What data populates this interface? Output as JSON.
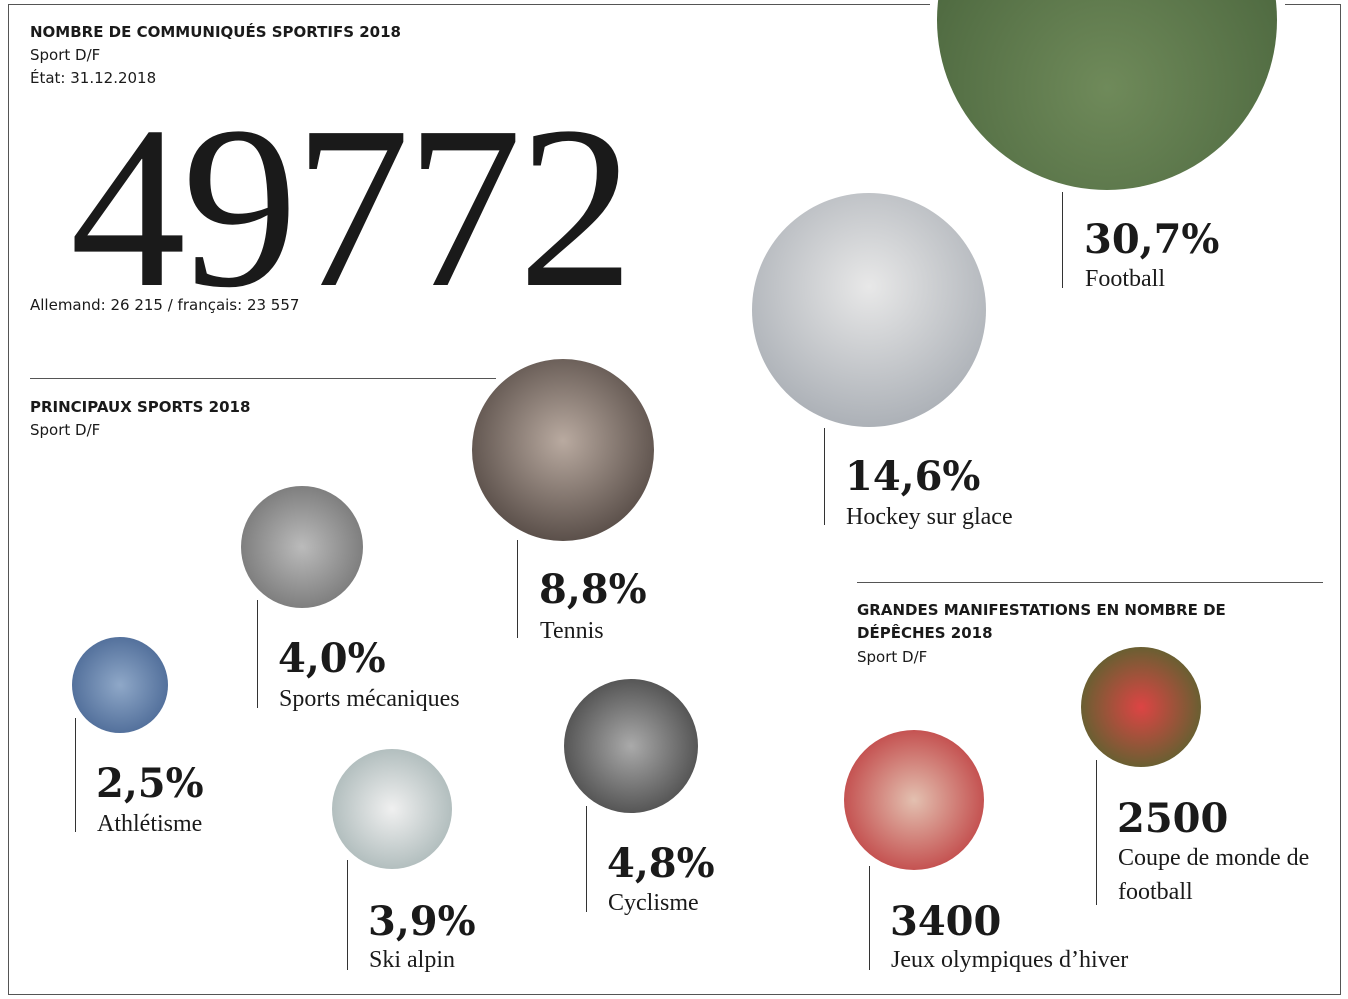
{
  "header": {
    "title": "NOMBRE DE COMMUNIQUÉS SPORTIFS 2018",
    "subtitle": "Sport D/F",
    "date": "État: 31.12.2018"
  },
  "total": {
    "value": "49772",
    "split": "Allemand: 26 215 / français: 23 557"
  },
  "sports_section": {
    "title": "PRINCIPAUX SPORTS 2018",
    "subtitle": "Sport D/F"
  },
  "sports": [
    {
      "value": "30,7%",
      "name": "Football"
    },
    {
      "value": "14,6%",
      "name": "Hockey sur glace"
    },
    {
      "value": "8,8%",
      "name": "Tennis"
    },
    {
      "value": "4,0%",
      "name": "Sports mécaniques"
    },
    {
      "value": "2,5%",
      "name": "Athlétisme"
    },
    {
      "value": "3,9%",
      "name": "Ski alpin"
    },
    {
      "value": "4,8%",
      "name": "Cyclisme"
    }
  ],
  "events_section": {
    "title": "GRANDES MANIFESTATIONS EN NOMBRE DE DÉPÊCHES 2018",
    "subtitle": "Sport D/F"
  },
  "events": [
    {
      "value": "3400",
      "name": "Jeux olympiques d’hiver"
    },
    {
      "value": "2500",
      "name": "Coupe de monde de football"
    }
  ]
}
